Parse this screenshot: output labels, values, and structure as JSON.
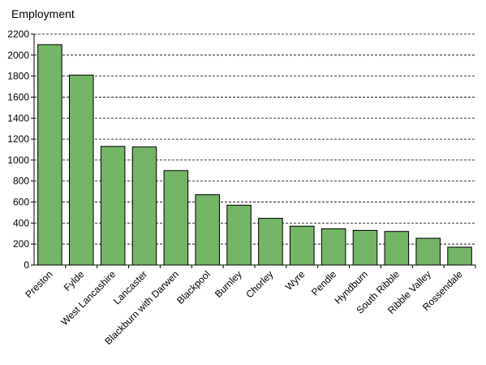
{
  "chart_data": {
    "type": "bar",
    "ylabel": "Employment",
    "ylim": [
      0,
      2200
    ],
    "yticks": [
      0,
      200,
      400,
      600,
      800,
      1000,
      1200,
      1400,
      1600,
      1800,
      2000,
      2200
    ],
    "grid": "horizontal dashed",
    "bar_color": "#74b466",
    "categories": [
      "Preston",
      "Fylde",
      "West Lancashire",
      "Lancaster",
      "Blackburn with Darwen",
      "Blackpool",
      "Burnley",
      "Chorley",
      "Wyre",
      "Pendle",
      "Hyndburn",
      "South Ribble",
      "Ribble Valley",
      "Rossendale"
    ],
    "values": [
      2100,
      1810,
      1130,
      1125,
      900,
      670,
      570,
      445,
      370,
      345,
      330,
      320,
      255,
      170
    ]
  }
}
